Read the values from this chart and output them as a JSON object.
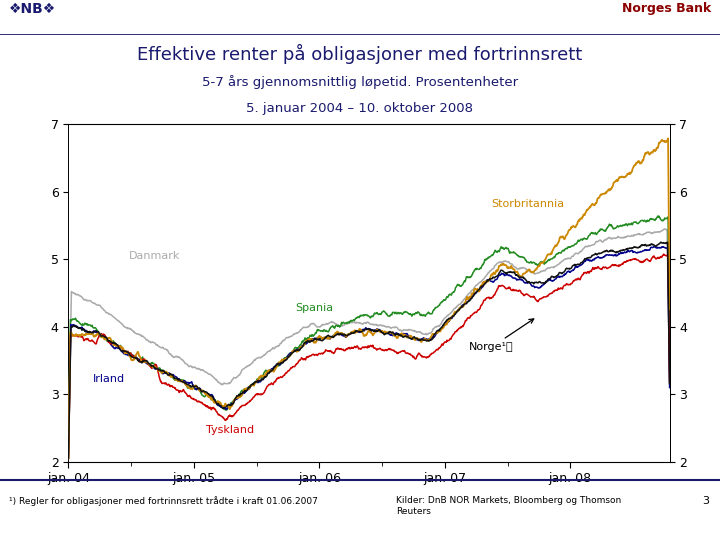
{
  "title": "Effektive renter på obligasjoner med fortrinnsrett",
  "subtitle1": "5-7 års gjennomsnittlig løpetid. Prosentenheter",
  "subtitle2": "5. januar 2004 – 10. oktober 2008",
  "header_right": "Norges Bank",
  "ylim": [
    2,
    7
  ],
  "yticks": [
    2,
    3,
    4,
    5,
    6,
    7
  ],
  "xtick_labels": [
    "jan. 04",
    "jan. 05",
    "jan. 06",
    "jan. 07",
    "jan. 08"
  ],
  "footnote1": "¹) Regler for obligasjoner med fortrinnsrett trådte i kraft 01.06.2007",
  "footnote2": "Kilder: DnB NOR Markets, Bloomberg og Thomson\nReuters",
  "page_number": "3",
  "line_colors": {
    "Danmark": "#AAAAAA",
    "Spania": "#228B22",
    "Irland": "#00008B",
    "Tyskland": "#CC0000",
    "Storbritannia": "#CC8800",
    "Norge": "#111111"
  },
  "background_color": "#FFFFFF",
  "navy": "#1a1a6e",
  "darkred": "#8B0000"
}
